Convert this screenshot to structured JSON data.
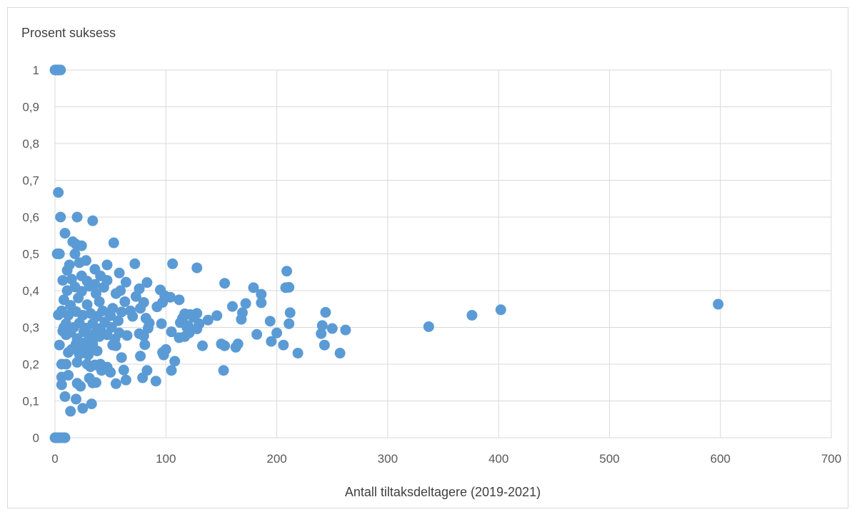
{
  "chart_data": {
    "type": "scatter",
    "ylabel": "Prosent suksess",
    "xlabel": "Antall tiltaksdeltagere (2019-2021)",
    "xlim": [
      0,
      700
    ],
    "ylim": [
      0,
      1
    ],
    "x_ticks": [
      "0",
      "100",
      "200",
      "300",
      "400",
      "500",
      "600",
      "700"
    ],
    "y_ticks": [
      "0",
      "0,1",
      "0,2",
      "0,3",
      "0,4",
      "0,5",
      "0,6",
      "0,7",
      "0,8",
      "0,9",
      "1"
    ],
    "grid": true,
    "marker_color": "#5b9bd5",
    "points": [
      [
        0,
        1
      ],
      [
        1,
        1
      ],
      [
        2,
        1
      ],
      [
        3,
        1
      ],
      [
        4,
        1
      ],
      [
        5,
        1
      ],
      [
        0,
        0
      ],
      [
        1,
        0
      ],
      [
        2,
        0
      ],
      [
        3,
        0
      ],
      [
        4,
        0
      ],
      [
        6,
        0
      ],
      [
        8,
        0
      ],
      [
        9,
        0
      ],
      [
        3,
        0.667
      ],
      [
        5,
        0.6
      ],
      [
        20,
        0.6
      ],
      [
        34,
        0.59
      ],
      [
        9,
        0.556
      ],
      [
        53,
        0.53
      ],
      [
        16,
        0.533
      ],
      [
        19,
        0.526
      ],
      [
        24,
        0.522
      ],
      [
        2,
        0.5
      ],
      [
        4,
        0.5
      ],
      [
        18,
        0.5
      ],
      [
        28,
        0.482
      ],
      [
        22,
        0.476
      ],
      [
        13,
        0.47
      ],
      [
        47,
        0.47
      ],
      [
        72,
        0.473
      ],
      [
        106,
        0.473
      ],
      [
        128,
        0.462
      ],
      [
        36,
        0.458
      ],
      [
        11,
        0.455
      ],
      [
        58,
        0.448
      ],
      [
        209,
        0.453
      ],
      [
        24,
        0.44
      ],
      [
        41,
        0.44
      ],
      [
        7,
        0.428
      ],
      [
        15,
        0.431
      ],
      [
        29,
        0.426
      ],
      [
        47,
        0.428
      ],
      [
        64,
        0.423
      ],
      [
        83,
        0.422
      ],
      [
        153,
        0.42
      ],
      [
        36,
        0.417
      ],
      [
        18,
        0.41
      ],
      [
        31,
        0.412
      ],
      [
        44,
        0.409
      ],
      [
        59,
        0.4
      ],
      [
        76,
        0.405
      ],
      [
        95,
        0.402
      ],
      [
        179,
        0.408
      ],
      [
        208,
        0.408
      ],
      [
        211,
        0.409
      ],
      [
        11,
        0.4
      ],
      [
        24,
        0.398
      ],
      [
        37,
        0.392
      ],
      [
        55,
        0.392
      ],
      [
        73,
        0.384
      ],
      [
        99,
        0.386
      ],
      [
        112,
        0.375
      ],
      [
        104,
        0.382
      ],
      [
        186,
        0.39
      ],
      [
        8,
        0.375
      ],
      [
        21,
        0.38
      ],
      [
        40,
        0.37
      ],
      [
        63,
        0.37
      ],
      [
        80,
        0.368
      ],
      [
        97,
        0.368
      ],
      [
        172,
        0.365
      ],
      [
        160,
        0.357
      ],
      [
        186,
        0.367
      ],
      [
        14,
        0.36
      ],
      [
        29,
        0.362
      ],
      [
        52,
        0.352
      ],
      [
        77,
        0.352
      ],
      [
        92,
        0.356
      ],
      [
        6,
        0.345
      ],
      [
        19,
        0.343
      ],
      [
        32,
        0.338
      ],
      [
        43,
        0.345
      ],
      [
        60,
        0.342
      ],
      [
        68,
        0.345
      ],
      [
        117,
        0.337
      ],
      [
        122,
        0.335
      ],
      [
        128,
        0.338
      ],
      [
        146,
        0.332
      ],
      [
        169,
        0.34
      ],
      [
        212,
        0.34
      ],
      [
        244,
        0.341
      ],
      [
        376,
        0.333
      ],
      [
        402,
        0.348
      ],
      [
        598,
        0.363
      ],
      [
        3,
        0.334
      ],
      [
        12,
        0.333
      ],
      [
        25,
        0.333
      ],
      [
        38,
        0.33
      ],
      [
        50,
        0.332
      ],
      [
        70,
        0.33
      ],
      [
        82,
        0.325
      ],
      [
        115,
        0.325
      ],
      [
        125,
        0.328
      ],
      [
        138,
        0.32
      ],
      [
        168,
        0.322
      ],
      [
        194,
        0.317
      ],
      [
        10,
        0.31
      ],
      [
        22,
        0.312
      ],
      [
        34,
        0.31
      ],
      [
        45,
        0.315
      ],
      [
        57,
        0.318
      ],
      [
        85,
        0.312
      ],
      [
        96,
        0.31
      ],
      [
        113,
        0.313
      ],
      [
        120,
        0.305
      ],
      [
        130,
        0.31
      ],
      [
        211,
        0.31
      ],
      [
        241,
        0.305
      ],
      [
        337,
        0.302
      ],
      [
        8,
        0.3
      ],
      [
        17,
        0.3
      ],
      [
        28,
        0.298
      ],
      [
        41,
        0.297
      ],
      [
        51,
        0.3
      ],
      [
        84,
        0.298
      ],
      [
        119,
        0.3
      ],
      [
        128,
        0.296
      ],
      [
        250,
        0.297
      ],
      [
        262,
        0.293
      ],
      [
        7,
        0.29
      ],
      [
        14,
        0.287
      ],
      [
        26,
        0.288
      ],
      [
        36,
        0.283
      ],
      [
        47,
        0.28
      ],
      [
        58,
        0.285
      ],
      [
        65,
        0.278
      ],
      [
        76,
        0.283
      ],
      [
        80,
        0.277
      ],
      [
        105,
        0.288
      ],
      [
        121,
        0.285
      ],
      [
        182,
        0.281
      ],
      [
        200,
        0.285
      ],
      [
        240,
        0.283
      ],
      [
        10,
        0.28
      ],
      [
        20,
        0.27
      ],
      [
        31,
        0.272
      ],
      [
        40,
        0.275
      ],
      [
        54,
        0.268
      ],
      [
        112,
        0.272
      ],
      [
        117,
        0.275
      ],
      [
        195,
        0.262
      ],
      [
        4,
        0.252
      ],
      [
        19,
        0.255
      ],
      [
        27,
        0.258
      ],
      [
        34,
        0.255
      ],
      [
        52,
        0.252
      ],
      [
        55,
        0.25
      ],
      [
        81,
        0.253
      ],
      [
        150,
        0.255
      ],
      [
        153,
        0.25
      ],
      [
        163,
        0.246
      ],
      [
        165,
        0.255
      ],
      [
        206,
        0.252
      ],
      [
        243,
        0.252
      ],
      [
        133,
        0.25
      ],
      [
        15,
        0.24
      ],
      [
        24,
        0.242
      ],
      [
        32,
        0.238
      ],
      [
        38,
        0.236
      ],
      [
        97,
        0.232
      ],
      [
        100,
        0.24
      ],
      [
        12,
        0.232
      ],
      [
        22,
        0.227
      ],
      [
        30,
        0.225
      ],
      [
        77,
        0.222
      ],
      [
        98,
        0.225
      ],
      [
        219,
        0.23
      ],
      [
        257,
        0.23
      ],
      [
        60,
        0.218
      ],
      [
        108,
        0.208
      ],
      [
        6,
        0.2
      ],
      [
        10,
        0.2
      ],
      [
        20,
        0.205
      ],
      [
        29,
        0.2
      ],
      [
        36,
        0.198
      ],
      [
        41,
        0.2
      ],
      [
        47,
        0.192
      ],
      [
        32,
        0.193
      ],
      [
        42,
        0.183
      ],
      [
        50,
        0.178
      ],
      [
        62,
        0.184
      ],
      [
        83,
        0.183
      ],
      [
        105,
        0.183
      ],
      [
        152,
        0.183
      ],
      [
        12,
        0.17
      ],
      [
        6,
        0.165
      ],
      [
        31,
        0.162
      ],
      [
        37,
        0.15
      ],
      [
        55,
        0.147
      ],
      [
        64,
        0.157
      ],
      [
        79,
        0.163
      ],
      [
        91,
        0.154
      ],
      [
        20,
        0.148
      ],
      [
        23,
        0.14
      ],
      [
        34,
        0.149
      ],
      [
        6,
        0.144
      ],
      [
        9,
        0.112
      ],
      [
        19,
        0.105
      ],
      [
        33,
        0.092
      ],
      [
        25,
        0.08
      ],
      [
        14,
        0.072
      ]
    ]
  }
}
